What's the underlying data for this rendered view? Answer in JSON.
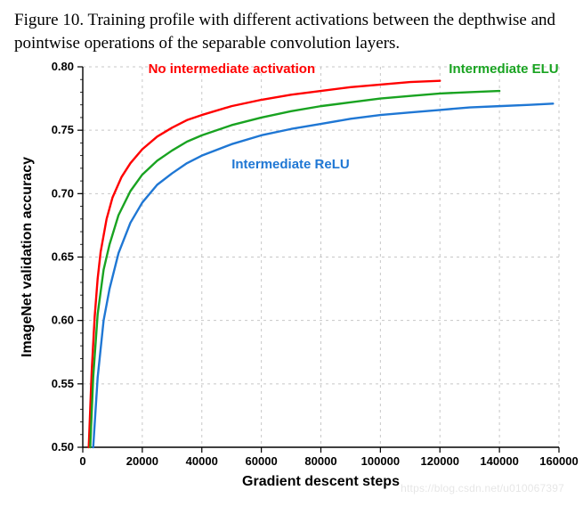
{
  "caption": "Figure 10. Training profile with different activations between the depthwise and pointwise operations of the separable convolution layers.",
  "watermark": "https://blog.csdn.net/u010067397",
  "chart": {
    "type": "line",
    "background_color": "#ffffff",
    "grid_color": "#c7c7c7",
    "grid_dash": "3,4",
    "axis_color": "#000000",
    "xlabel": "Gradient descent steps",
    "ylabel": "ImageNet validation accuracy",
    "label_fontsize": 16,
    "tick_fontsize": 13,
    "xlim": [
      0,
      160000
    ],
    "ylim": [
      0.5,
      0.8
    ],
    "xticks": [
      0,
      20000,
      40000,
      60000,
      80000,
      100000,
      120000,
      140000,
      160000
    ],
    "yticks": [
      0.5,
      0.55,
      0.6,
      0.65,
      0.7,
      0.75,
      0.8
    ],
    "yminor_step": 0.01,
    "line_width": 2.4,
    "series": [
      {
        "name": "No intermediate activation",
        "label": "No intermediate activation",
        "color": "#ff0000",
        "label_pos": {
          "x": 22000,
          "y": 0.795
        },
        "x": [
          2000,
          3000,
          4000,
          5000,
          6000,
          8000,
          10000,
          13000,
          16000,
          20000,
          25000,
          30000,
          35000,
          40000,
          50000,
          60000,
          70000,
          80000,
          90000,
          100000,
          110000,
          120000
        ],
        "y": [
          0.5,
          0.56,
          0.603,
          0.633,
          0.654,
          0.68,
          0.697,
          0.713,
          0.724,
          0.735,
          0.745,
          0.752,
          0.758,
          0.762,
          0.769,
          0.774,
          0.778,
          0.781,
          0.784,
          0.786,
          0.788,
          0.789
        ]
      },
      {
        "name": "Intermediate ELU",
        "label": "Intermediate ELU",
        "color": "#19a321",
        "label_pos": {
          "x": 123000,
          "y": 0.795
        },
        "x": [
          2500,
          3500,
          5000,
          7000,
          9000,
          12000,
          16000,
          20000,
          25000,
          30000,
          35000,
          40000,
          50000,
          60000,
          70000,
          80000,
          90000,
          100000,
          110000,
          120000,
          130000,
          140000
        ],
        "y": [
          0.5,
          0.555,
          0.605,
          0.64,
          0.66,
          0.683,
          0.702,
          0.715,
          0.726,
          0.734,
          0.741,
          0.746,
          0.754,
          0.76,
          0.765,
          0.769,
          0.772,
          0.775,
          0.777,
          0.779,
          0.78,
          0.781
        ]
      },
      {
        "name": "Intermediate ReLU",
        "label": "Intermediate ReLU",
        "color": "#1f77d4",
        "label_pos": {
          "x": 50000,
          "y": 0.72
        },
        "x": [
          3500,
          5000,
          7000,
          9000,
          12000,
          16000,
          20000,
          25000,
          30000,
          35000,
          40000,
          50000,
          60000,
          70000,
          80000,
          90000,
          100000,
          110000,
          120000,
          130000,
          140000,
          150000,
          158000
        ],
        "y": [
          0.5,
          0.555,
          0.6,
          0.625,
          0.653,
          0.677,
          0.693,
          0.707,
          0.716,
          0.724,
          0.73,
          0.739,
          0.746,
          0.751,
          0.755,
          0.759,
          0.762,
          0.764,
          0.766,
          0.768,
          0.769,
          0.77,
          0.771
        ]
      }
    ]
  }
}
